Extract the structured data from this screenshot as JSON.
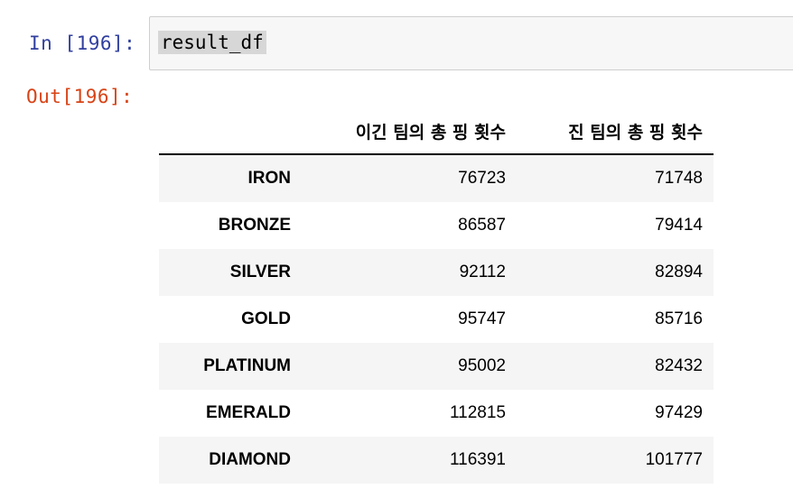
{
  "cell": {
    "in_prompt": "In [196]:",
    "out_prompt": "Out[196]:",
    "code": "result_df"
  },
  "table": {
    "columns": [
      "이긴 팀의 총 핑 횟수",
      "진 팀의 총 핑 횟수"
    ],
    "rows": [
      {
        "index": "IRON",
        "values": [
          "76723",
          "71748"
        ]
      },
      {
        "index": "BRONZE",
        "values": [
          "86587",
          "79414"
        ]
      },
      {
        "index": "SILVER",
        "values": [
          "92112",
          "82894"
        ]
      },
      {
        "index": "GOLD",
        "values": [
          "95747",
          "85716"
        ]
      },
      {
        "index": "PLATINUM",
        "values": [
          "95002",
          "82432"
        ]
      },
      {
        "index": "EMERALD",
        "values": [
          "112815",
          "97429"
        ]
      },
      {
        "index": "DIAMOND",
        "values": [
          "116391",
          "101777"
        ]
      }
    ]
  },
  "colors": {
    "in_prompt": "#303f9f",
    "out_prompt": "#d84315",
    "cell_background": "#f7f7f7",
    "stripe": "#f5f5f5"
  }
}
